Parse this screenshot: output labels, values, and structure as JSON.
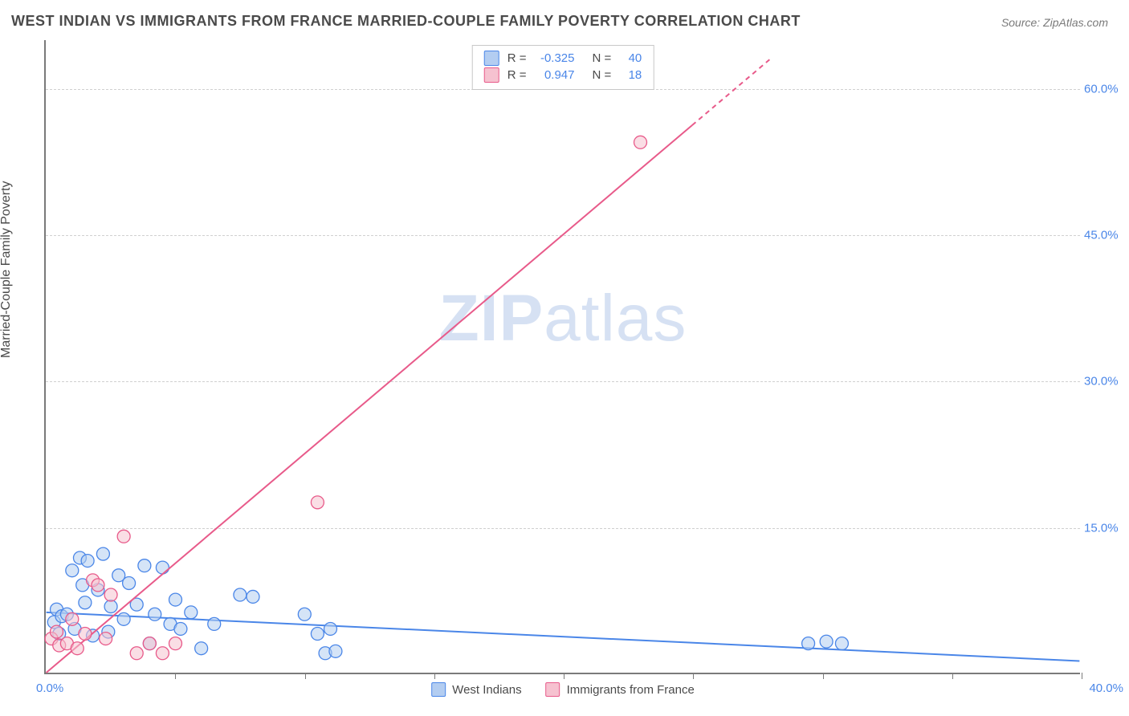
{
  "title": "WEST INDIAN VS IMMIGRANTS FROM FRANCE MARRIED-COUPLE FAMILY POVERTY CORRELATION CHART",
  "source": "Source: ZipAtlas.com",
  "y_axis_label": "Married-Couple Family Poverty",
  "watermark": {
    "bold": "ZIP",
    "light": "atlas"
  },
  "chart": {
    "type": "scatter-with-regression",
    "xlim": [
      0,
      40
    ],
    "ylim": [
      0,
      65
    ],
    "x_ticks_major": [
      40
    ],
    "x_ticks_minor": [
      5,
      10,
      15,
      20,
      25,
      30,
      35
    ],
    "y_ticks": [
      15,
      30,
      45,
      60
    ],
    "x_tick_labels": {
      "min": "0.0%",
      "max": "40.0%"
    },
    "y_tick_labels": [
      "15.0%",
      "30.0%",
      "45.0%",
      "60.0%"
    ],
    "grid_color": "#d0d0d0",
    "axis_color": "#7a7a7a",
    "background": "#ffffff",
    "marker_radius": 8,
    "marker_opacity": 0.55,
    "line_width": 2,
    "series": [
      {
        "name": "West Indians",
        "label": "West Indians",
        "color_fill": "#b3cdf1",
        "color_stroke": "#4a86e8",
        "regression": {
          "R": -0.325,
          "N": 40,
          "x1": 0,
          "y1": 6.2,
          "x2": 40,
          "y2": 1.2
        },
        "points": [
          [
            0.3,
            5.2
          ],
          [
            0.4,
            6.5
          ],
          [
            0.5,
            4.0
          ],
          [
            0.6,
            5.8
          ],
          [
            0.8,
            6.0
          ],
          [
            1.0,
            10.5
          ],
          [
            1.1,
            4.5
          ],
          [
            1.3,
            11.8
          ],
          [
            1.4,
            9.0
          ],
          [
            1.5,
            7.2
          ],
          [
            1.6,
            11.5
          ],
          [
            1.8,
            3.8
          ],
          [
            2.0,
            8.5
          ],
          [
            2.2,
            12.2
          ],
          [
            2.4,
            4.2
          ],
          [
            2.5,
            6.8
          ],
          [
            2.8,
            10.0
          ],
          [
            3.0,
            5.5
          ],
          [
            3.2,
            9.2
          ],
          [
            3.5,
            7.0
          ],
          [
            3.8,
            11.0
          ],
          [
            4.0,
            3.0
          ],
          [
            4.2,
            6.0
          ],
          [
            4.5,
            10.8
          ],
          [
            4.8,
            5.0
          ],
          [
            5.0,
            7.5
          ],
          [
            5.2,
            4.5
          ],
          [
            5.6,
            6.2
          ],
          [
            6.0,
            2.5
          ],
          [
            6.5,
            5.0
          ],
          [
            7.5,
            8.0
          ],
          [
            8.0,
            7.8
          ],
          [
            10.0,
            6.0
          ],
          [
            10.5,
            4.0
          ],
          [
            10.8,
            2.0
          ],
          [
            11.0,
            4.5
          ],
          [
            11.2,
            2.2
          ],
          [
            29.5,
            3.0
          ],
          [
            30.2,
            3.2
          ],
          [
            30.8,
            3.0
          ]
        ]
      },
      {
        "name": "Immigrants from France",
        "label": "Immigrants from France",
        "color_fill": "#f6c2d0",
        "color_stroke": "#e85a8a",
        "regression": {
          "R": 0.947,
          "N": 18,
          "x1": 0,
          "y1": 0.0,
          "x2": 28,
          "y2": 63,
          "dash_after_x": 25
        },
        "points": [
          [
            0.2,
            3.5
          ],
          [
            0.4,
            4.2
          ],
          [
            0.5,
            2.8
          ],
          [
            0.8,
            3.0
          ],
          [
            1.0,
            5.5
          ],
          [
            1.2,
            2.5
          ],
          [
            1.5,
            4.0
          ],
          [
            1.8,
            9.5
          ],
          [
            2.0,
            9.0
          ],
          [
            2.3,
            3.5
          ],
          [
            2.5,
            8.0
          ],
          [
            3.0,
            14.0
          ],
          [
            3.5,
            2.0
          ],
          [
            4.0,
            3.0
          ],
          [
            4.5,
            2.0
          ],
          [
            5.0,
            3.0
          ],
          [
            10.5,
            17.5
          ],
          [
            23.0,
            54.5
          ]
        ]
      }
    ]
  },
  "stats_box": {
    "rows": [
      {
        "series": 0,
        "R_label": "R =",
        "R": "-0.325",
        "N_label": "N =",
        "N": "40"
      },
      {
        "series": 1,
        "R_label": "R =",
        "R": " 0.947",
        "N_label": "N =",
        "N": "18"
      }
    ]
  },
  "legend_bottom": [
    {
      "series": 0
    },
    {
      "series": 1
    }
  ]
}
